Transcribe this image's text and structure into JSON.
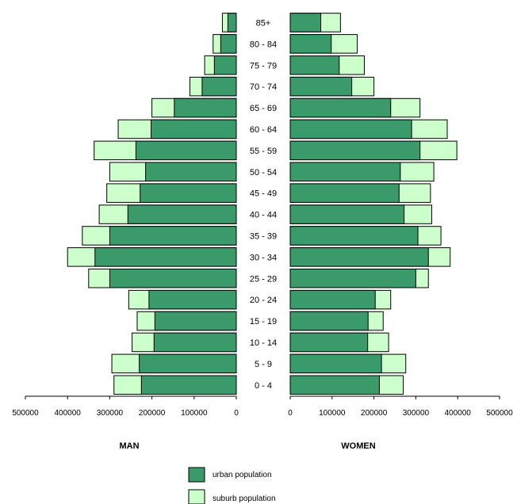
{
  "chart_data": {
    "type": "bar",
    "subtype": "population-pyramid",
    "orientation": "horizontal",
    "colors": {
      "urban": "#3a9a6a",
      "suburb": "#ccffcc",
      "edge": "#000000"
    },
    "categories": [
      "0 - 4",
      "5 - 9",
      "10 - 14",
      "15 - 19",
      "20 - 24",
      "25 - 29",
      "30 - 34",
      "35 - 39",
      "40 - 44",
      "45 - 49",
      "50 - 54",
      "55 - 59",
      "60 - 64",
      "65 - 69",
      "70 - 74",
      "75 - 79",
      "80 - 84",
      "85+"
    ],
    "panels": [
      {
        "side": "left",
        "title": "MAN",
        "xlim": [
          0,
          500000
        ],
        "ticks": [
          500000,
          400000,
          300000,
          200000,
          100000,
          0
        ],
        "tick_labels": [
          "500000",
          "400000",
          "300000",
          "200000",
          "100000",
          "0"
        ],
        "series": [
          {
            "name": "urban population",
            "values": [
              225000,
              230000,
              195000,
              193000,
              207000,
              300000,
              335000,
              300000,
              257000,
              228000,
              215000,
              238000,
              202000,
              147000,
              81000,
              52000,
              37000,
              20000
            ]
          },
          {
            "name": "suburb population",
            "values": [
              290000,
              295000,
              247000,
              235000,
              255000,
              350000,
              400000,
              365000,
              325000,
              307000,
              300000,
              337000,
              280000,
              200000,
              110000,
              75000,
              55000,
              33000
            ]
          }
        ]
      },
      {
        "side": "right",
        "title": "WOMEN",
        "xlim": [
          0,
          500000
        ],
        "ticks": [
          0,
          100000,
          200000,
          300000,
          400000,
          500000
        ],
        "tick_labels": [
          "0",
          "100000",
          "200000",
          "300000",
          "400000",
          "500000"
        ],
        "series": [
          {
            "name": "urban population",
            "values": [
              213000,
              218000,
              185000,
              186000,
              203000,
              300000,
              330000,
              305000,
              272000,
              260000,
              263000,
              310000,
              290000,
              240000,
              147000,
              117000,
              98000,
              73000
            ]
          },
          {
            "name": "suburb population",
            "values": [
              270000,
              276000,
              235000,
              222000,
              240000,
              330000,
              382000,
              360000,
              338000,
              335000,
              343000,
              398000,
              375000,
              310000,
              200000,
              177000,
              160000,
              120000
            ]
          }
        ]
      }
    ],
    "legend": {
      "position": "bottom",
      "items": [
        {
          "label": "urban population",
          "color": "#3a9a6a"
        },
        {
          "label": "suburb population",
          "color": "#ccffcc"
        }
      ]
    }
  }
}
